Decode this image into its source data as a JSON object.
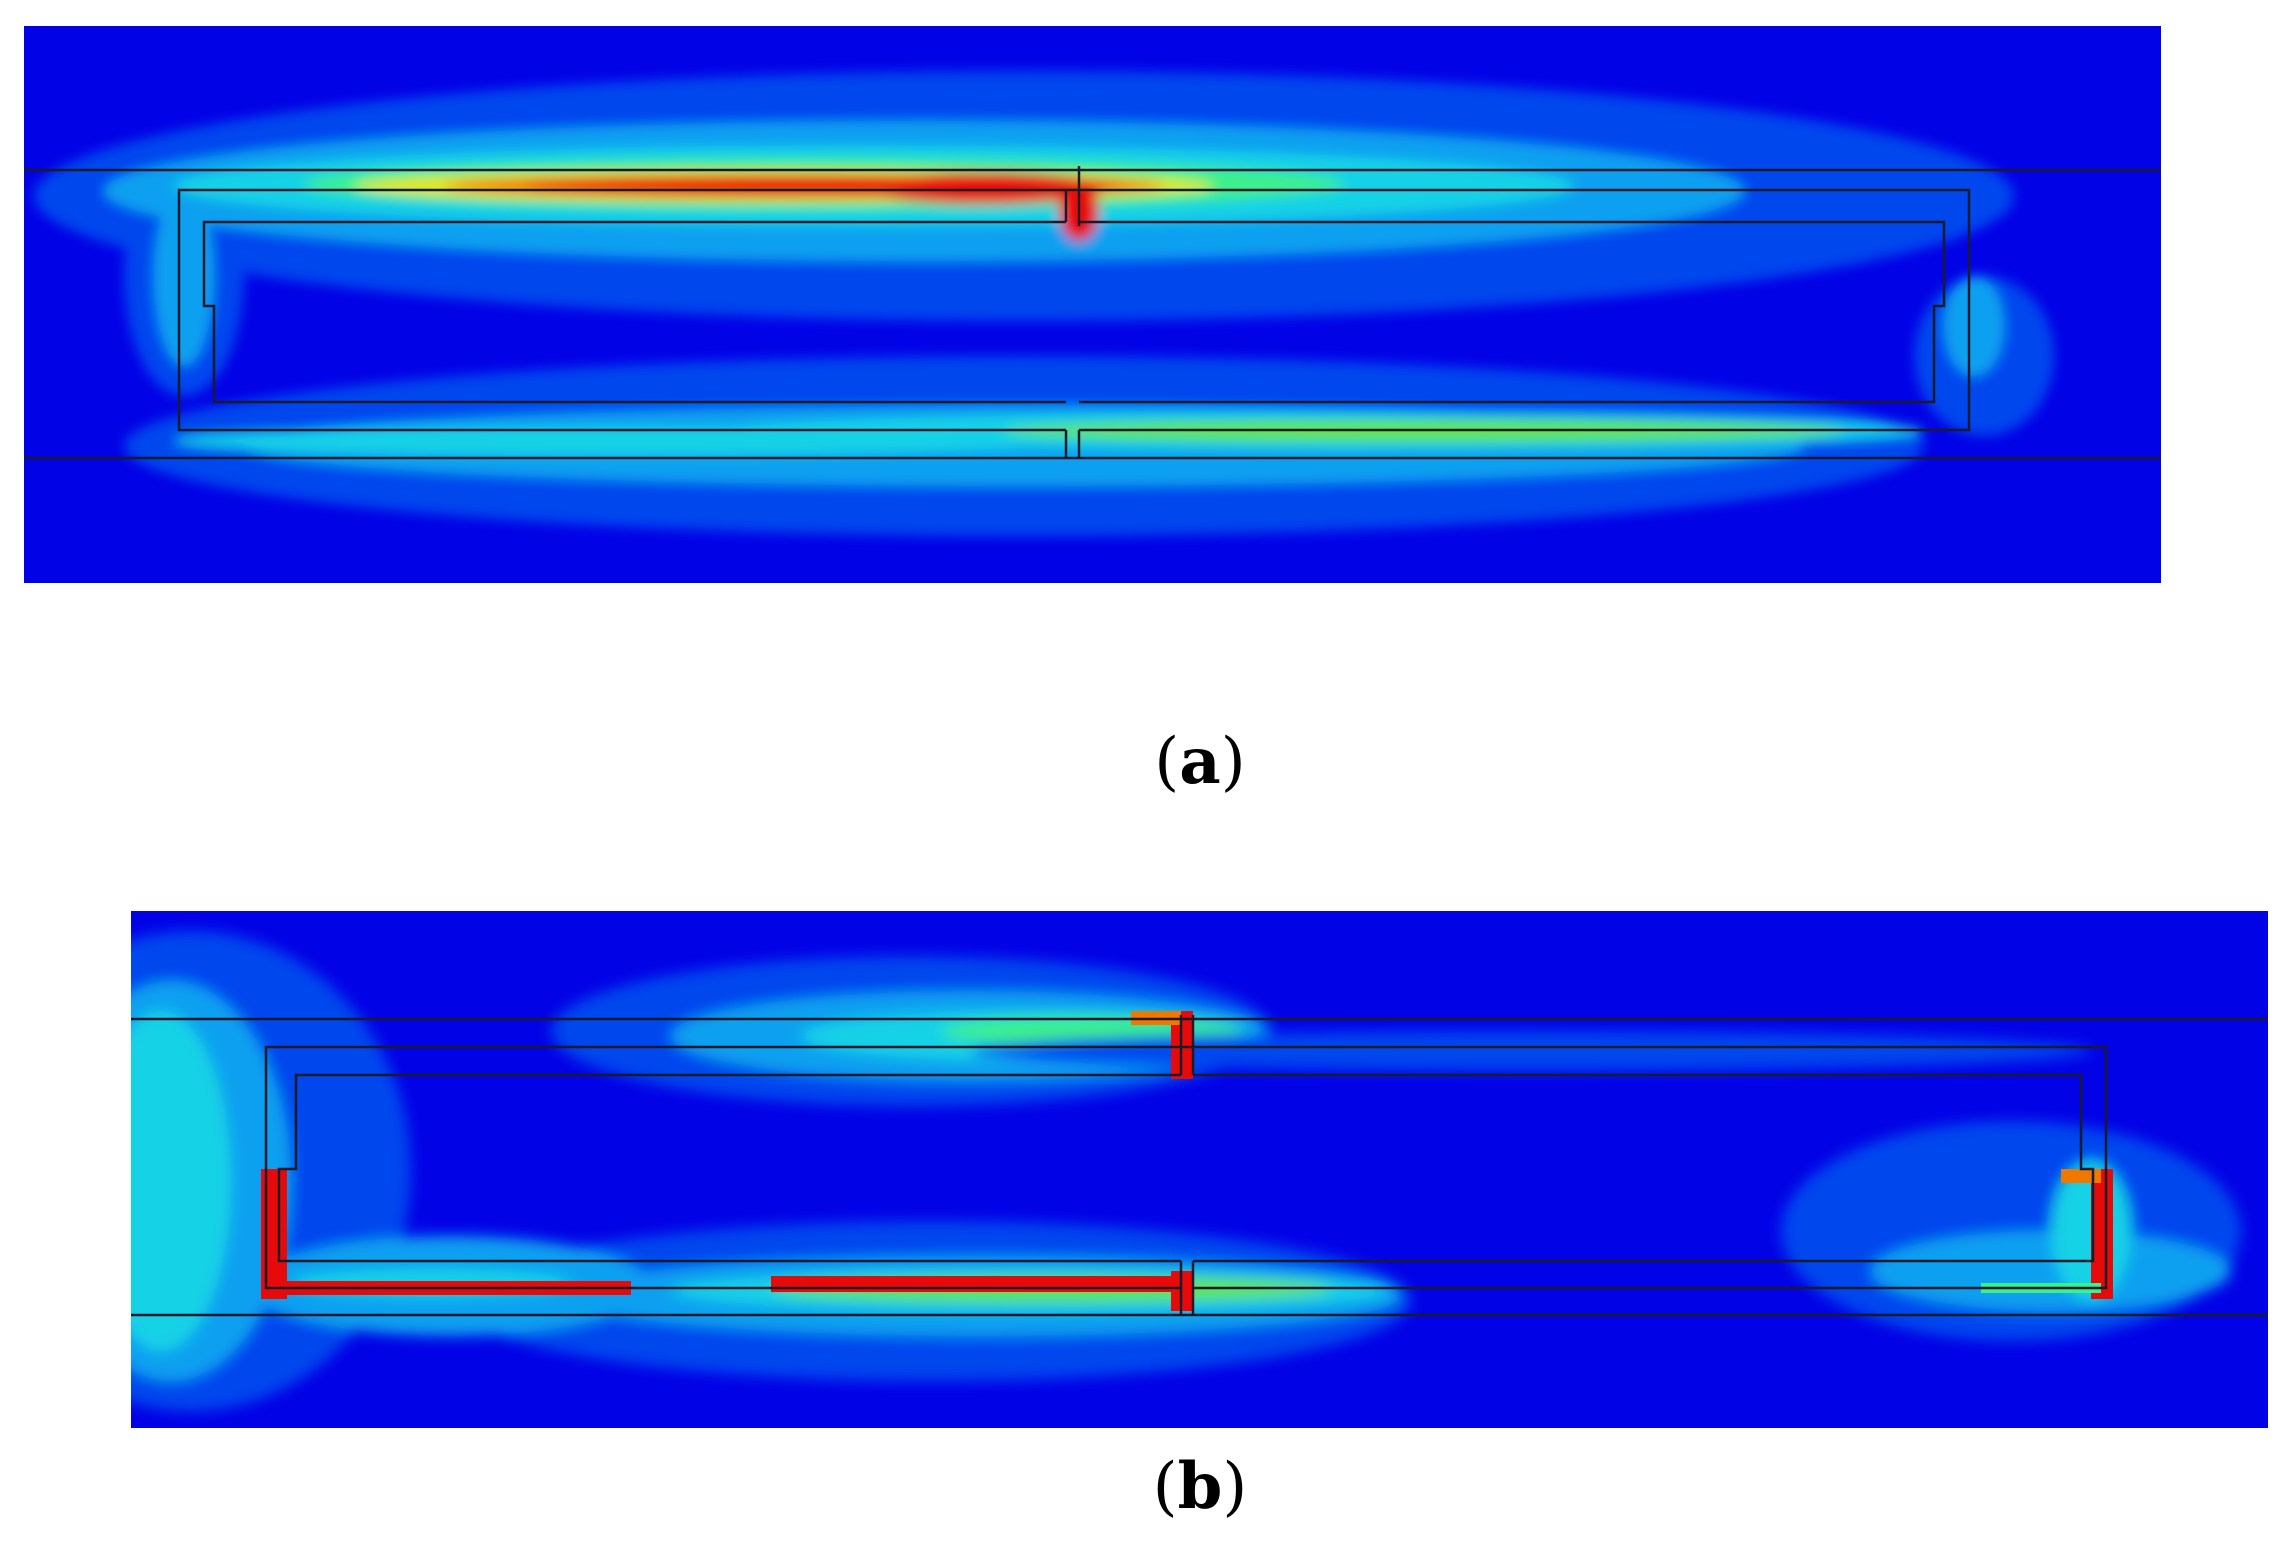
{
  "figure": {
    "panels": [
      {
        "open": "(",
        "label": "a",
        "close": ")"
      },
      {
        "open": "(",
        "label": "b",
        "close": ")"
      }
    ],
    "colors": {
      "background_field": "#0202e6",
      "low": "#0046ee",
      "mid_low": "#0aa0f0",
      "mid": "#14d2e6",
      "mid_high": "#3cf08c",
      "high_green": "#64e632",
      "yellow": "#e6e600",
      "orange": "#f07800",
      "red": "#e60a0a",
      "outline": "#1a1a2a"
    }
  }
}
